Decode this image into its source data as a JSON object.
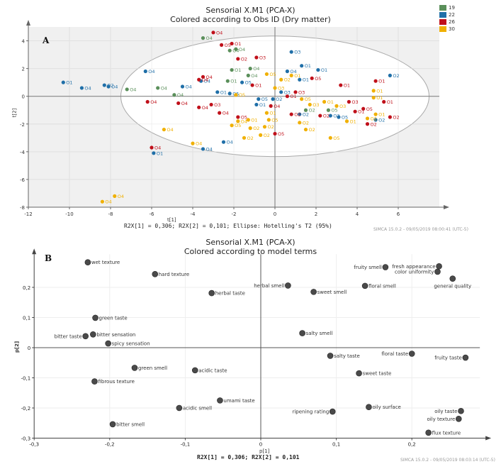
{
  "chart_data": [
    {
      "type": "scatter",
      "panel": "A",
      "title": "Sensorial X.M1 (PCA-X)",
      "subtitle": "Colored according to Obs ID (Dry matter)",
      "xlabel": "t[1]",
      "ylabel": "t[2]",
      "xlim": [
        -12,
        8
      ],
      "ylim": [
        -8,
        5
      ],
      "xticks": [
        "-12",
        "-10",
        "-8",
        "-6",
        "-4",
        "-2",
        "0",
        "2",
        "4",
        "6"
      ],
      "xtick_values": [
        -12,
        -10,
        -8,
        -6,
        -4,
        -2,
        0,
        2,
        4,
        6
      ],
      "yticks": [
        "4",
        "2",
        "0",
        "-2",
        "-4",
        "-6",
        "-8"
      ],
      "ytick_values": [
        4,
        2,
        0,
        -2,
        -4,
        -6,
        -8
      ],
      "grid": true,
      "ellipse": {
        "label": "Hotelling's T2 (95%)",
        "rx": 7.5,
        "ry": 4.35
      },
      "footnote": "R2X[1] = 0,306; R2X[2] = 0,101; Ellipse: Hotelling's T2 (95%)",
      "software": "SIMCA 15.0.2 - 09/05/2019 08:00:41 (UTC-5)",
      "legend_position": "top-right",
      "legend": [
        {
          "label": "19",
          "color": "#5a8f5a"
        },
        {
          "label": "22",
          "color": "#1f6fa8"
        },
        {
          "label": "26",
          "color": "#c0101a"
        },
        {
          "label": "30",
          "color": "#f0b000"
        }
      ],
      "series": [
        {
          "name": "19",
          "color": "#5a8f5a",
          "points": [
            {
              "x": -3.5,
              "y": 4.2,
              "label": "O4"
            },
            {
              "x": -1.9,
              "y": 3.4,
              "label": "O4"
            },
            {
              "x": -2.2,
              "y": 3.3,
              "label": "O4"
            },
            {
              "x": -7.2,
              "y": 0.5,
              "label": "O4"
            },
            {
              "x": -5.7,
              "y": 0.6,
              "label": "O4"
            },
            {
              "x": -4.9,
              "y": 0.1,
              "label": "O4"
            },
            {
              "x": -2.1,
              "y": 1.9,
              "label": "O1"
            },
            {
              "x": -1.2,
              "y": 2.0,
              "label": "O4"
            },
            {
              "x": -2.3,
              "y": 1.1,
              "label": "O1"
            },
            {
              "x": -1.3,
              "y": 1.5,
              "label": "O4"
            },
            {
              "x": 1.5,
              "y": -1.0,
              "label": "O2"
            },
            {
              "x": 2.6,
              "y": -1.0,
              "label": "O5"
            }
          ]
        },
        {
          "name": "22",
          "color": "#1f6fa8",
          "points": [
            {
              "x": -10.3,
              "y": 1.0,
              "label": "O1"
            },
            {
              "x": -9.4,
              "y": 0.6,
              "label": "O4"
            },
            {
              "x": -8.3,
              "y": 0.8,
              "label": "O2"
            },
            {
              "x": -8.1,
              "y": 0.7,
              "label": "O4"
            },
            {
              "x": -6.3,
              "y": 1.8,
              "label": "O4"
            },
            {
              "x": -4.5,
              "y": 0.7,
              "label": "O4"
            },
            {
              "x": -5.9,
              "y": -4.1,
              "label": "O1"
            },
            {
              "x": -3.5,
              "y": -3.8,
              "label": "O4"
            },
            {
              "x": -2.5,
              "y": -3.3,
              "label": "O4"
            },
            {
              "x": -3.6,
              "y": 1.1,
              "label": "O4"
            },
            {
              "x": 0.8,
              "y": 3.2,
              "label": "O3"
            },
            {
              "x": 2.1,
              "y": 1.9,
              "label": "O1"
            },
            {
              "x": 1.3,
              "y": 2.2,
              "label": "O1"
            },
            {
              "x": 5.6,
              "y": 1.5,
              "label": "O2"
            },
            {
              "x": -2.8,
              "y": 0.3,
              "label": "O1"
            },
            {
              "x": -2.2,
              "y": 0.2,
              "label": "O5"
            },
            {
              "x": -0.8,
              "y": -0.2,
              "label": "O5"
            },
            {
              "x": -0.9,
              "y": -0.6,
              "label": "O1"
            },
            {
              "x": 0.3,
              "y": 0.3,
              "label": "O3"
            },
            {
              "x": -0.1,
              "y": -0.2,
              "label": "O2"
            },
            {
              "x": 1.2,
              "y": -1.3,
              "label": "O2"
            },
            {
              "x": 3.1,
              "y": -1.5,
              "label": "O5"
            },
            {
              "x": 4.9,
              "y": -1.7,
              "label": "O2"
            },
            {
              "x": 2.7,
              "y": -1.4,
              "label": "O2"
            },
            {
              "x": -1.6,
              "y": 1.0,
              "label": "O5"
            },
            {
              "x": 0.6,
              "y": 1.8,
              "label": "O4"
            },
            {
              "x": 1.2,
              "y": 1.2,
              "label": "O1"
            }
          ]
        },
        {
          "name": "26",
          "color": "#c0101a",
          "points": [
            {
              "x": -3.0,
              "y": 4.6,
              "label": "O4"
            },
            {
              "x": -2.1,
              "y": 3.8,
              "label": "O1"
            },
            {
              "x": -2.6,
              "y": 3.7,
              "label": "O5"
            },
            {
              "x": -1.8,
              "y": 2.7,
              "label": "O2"
            },
            {
              "x": -0.9,
              "y": 2.8,
              "label": "O3"
            },
            {
              "x": -3.5,
              "y": 1.4,
              "label": "O4"
            },
            {
              "x": -3.7,
              "y": 1.2,
              "label": "O4"
            },
            {
              "x": -6.2,
              "y": -0.4,
              "label": "O4"
            },
            {
              "x": -4.7,
              "y": -0.5,
              "label": "O4"
            },
            {
              "x": -3.7,
              "y": -0.8,
              "label": "O4"
            },
            {
              "x": -3.1,
              "y": -0.6,
              "label": "O3"
            },
            {
              "x": -2.7,
              "y": -1.2,
              "label": "O4"
            },
            {
              "x": -6.0,
              "y": -3.7,
              "label": "O4"
            },
            {
              "x": -1.8,
              "y": -1.5,
              "label": "O5"
            },
            {
              "x": 0.0,
              "y": -2.7,
              "label": "O5"
            },
            {
              "x": 3.2,
              "y": 0.8,
              "label": "O1"
            },
            {
              "x": 4.9,
              "y": 1.1,
              "label": "O1"
            },
            {
              "x": 5.3,
              "y": -0.4,
              "label": "O1"
            },
            {
              "x": 5.6,
              "y": -1.5,
              "label": "O2"
            },
            {
              "x": 4.5,
              "y": -2.0,
              "label": "O2"
            },
            {
              "x": 3.6,
              "y": -0.4,
              "label": "O3"
            },
            {
              "x": 2.2,
              "y": -1.4,
              "label": "O2"
            },
            {
              "x": 0.8,
              "y": -1.3,
              "label": "O2"
            },
            {
              "x": -0.2,
              "y": -0.7,
              "label": "O4"
            },
            {
              "x": 1.8,
              "y": 1.3,
              "label": "O5"
            },
            {
              "x": -1.1,
              "y": 0.8,
              "label": "O1"
            },
            {
              "x": 0.6,
              "y": 0.0,
              "label": "O1"
            },
            {
              "x": 4.3,
              "y": -0.9,
              "label": "O5"
            },
            {
              "x": 3.9,
              "y": -1.1,
              "label": "O1"
            },
            {
              "x": 1.0,
              "y": 0.3,
              "label": "O3"
            }
          ]
        },
        {
          "name": "30",
          "color": "#f0b000",
          "points": [
            {
              "x": -5.4,
              "y": -2.4,
              "label": "O4"
            },
            {
              "x": -4.0,
              "y": -3.4,
              "label": "O4"
            },
            {
              "x": -7.8,
              "y": -7.2,
              "label": "O4"
            },
            {
              "x": -8.4,
              "y": -7.6,
              "label": "O4"
            },
            {
              "x": -2.1,
              "y": -2.1,
              "label": "O5"
            },
            {
              "x": -1.8,
              "y": -1.8,
              "label": "O4"
            },
            {
              "x": -1.3,
              "y": -1.7,
              "label": "O1"
            },
            {
              "x": -1.2,
              "y": -2.3,
              "label": "O2"
            },
            {
              "x": -0.5,
              "y": -2.2,
              "label": "O2"
            },
            {
              "x": -0.4,
              "y": -1.2,
              "label": "O1"
            },
            {
              "x": -0.3,
              "y": -1.7,
              "label": "O5"
            },
            {
              "x": -0.7,
              "y": -2.8,
              "label": "O2"
            },
            {
              "x": -1.5,
              "y": -3.0,
              "label": "O2"
            },
            {
              "x": 1.2,
              "y": -1.9,
              "label": "O2"
            },
            {
              "x": 1.5,
              "y": -2.4,
              "label": "O2"
            },
            {
              "x": 2.7,
              "y": -3.0,
              "label": "O5"
            },
            {
              "x": 3.5,
              "y": -1.8,
              "label": "O1"
            },
            {
              "x": 4.8,
              "y": 0.4,
              "label": "O1"
            },
            {
              "x": 4.8,
              "y": -0.1,
              "label": "O1"
            },
            {
              "x": 4.9,
              "y": -1.3,
              "label": "O1"
            },
            {
              "x": 4.5,
              "y": -1.6,
              "label": "O2"
            },
            {
              "x": -1.9,
              "y": 0.1,
              "label": "O5"
            },
            {
              "x": 0.0,
              "y": 0.6,
              "label": "O3"
            },
            {
              "x": 0.8,
              "y": 1.5,
              "label": "O1"
            },
            {
              "x": 1.7,
              "y": -0.6,
              "label": "O3"
            },
            {
              "x": 2.4,
              "y": -0.4,
              "label": "O1"
            },
            {
              "x": 3.0,
              "y": -0.7,
              "label": "O3"
            },
            {
              "x": -0.4,
              "y": 1.6,
              "label": "O5"
            },
            {
              "x": 0.3,
              "y": 1.2,
              "label": "O2"
            },
            {
              "x": 1.3,
              "y": -0.2,
              "label": "O5"
            }
          ]
        }
      ]
    },
    {
      "type": "scatter",
      "panel": "B",
      "title": "Sensorial X.M1 (PCA-X)",
      "subtitle": "Colored according to model terms",
      "xlabel": "p[1]",
      "ylabel": "p[2]",
      "xlim": [
        -0.3,
        0.3
      ],
      "ylim": [
        -0.3,
        0.3
      ],
      "xticks": [
        "-0,3",
        "-0,2",
        "-0,1",
        "0",
        "0,1",
        "0,2"
      ],
      "xtick_values": [
        -0.3,
        -0.2,
        -0.1,
        0,
        0.1,
        0.2
      ],
      "yticks": [
        "0,2",
        "0,1",
        "0",
        "-0,1",
        "-0,2",
        "-0,3"
      ],
      "ytick_values": [
        0.2,
        0.1,
        0,
        -0.1,
        -0.2,
        -0.3
      ],
      "grid": true,
      "footnote": "R2X[1] = 0,306; R2X[2] = 0,101",
      "software": "SIMCA 15.0.2 - 09/05/2019 08:03:14 (UTC-5)",
      "marker_color": "#4a4a4a",
      "points": [
        {
          "x": -0.229,
          "y": 0.283,
          "label": "wet texture",
          "side": "right"
        },
        {
          "x": -0.14,
          "y": 0.244,
          "label": "hard texture",
          "side": "right"
        },
        {
          "x": 0.036,
          "y": 0.206,
          "label": "herbal smell",
          "side": "left"
        },
        {
          "x": -0.065,
          "y": 0.181,
          "label": "herbal taste",
          "side": "right"
        },
        {
          "x": 0.07,
          "y": 0.185,
          "label": "sweet smell",
          "side": "right"
        },
        {
          "x": 0.138,
          "y": 0.205,
          "label": "floral smell",
          "side": "right"
        },
        {
          "x": 0.165,
          "y": 0.267,
          "label": "fruity   smell",
          "side": "left"
        },
        {
          "x": 0.236,
          "y": 0.27,
          "label": "fresh appearance",
          "side": "left"
        },
        {
          "x": 0.234,
          "y": 0.252,
          "label": "color uniformity",
          "side": "left"
        },
        {
          "x": 0.254,
          "y": 0.229,
          "label": "general quality",
          "side": "below"
        },
        {
          "x": -0.219,
          "y": 0.099,
          "label": "green taste",
          "side": "right"
        },
        {
          "x": -0.232,
          "y": 0.038,
          "label": "bitter taste",
          "side": "left"
        },
        {
          "x": -0.222,
          "y": 0.044,
          "label": "bitter sensation",
          "side": "right"
        },
        {
          "x": -0.202,
          "y": 0.014,
          "label": "spicy sensation",
          "side": "right"
        },
        {
          "x": 0.055,
          "y": 0.048,
          "label": "salty smell",
          "side": "right"
        },
        {
          "x": 0.092,
          "y": -0.027,
          "label": "salty taste",
          "side": "right"
        },
        {
          "x": 0.2,
          "y": -0.02,
          "label": "floral taste",
          "side": "left"
        },
        {
          "x": 0.271,
          "y": -0.033,
          "label": "fruity taste",
          "side": "left"
        },
        {
          "x": -0.167,
          "y": -0.067,
          "label": "green smell",
          "side": "right"
        },
        {
          "x": -0.087,
          "y": -0.075,
          "label": "acidic taste",
          "side": "right"
        },
        {
          "x": -0.22,
          "y": -0.112,
          "label": "fibrous texture",
          "side": "right"
        },
        {
          "x": 0.13,
          "y": -0.085,
          "label": "sweet taste",
          "side": "right"
        },
        {
          "x": -0.054,
          "y": -0.175,
          "label": "umami taste",
          "side": "right"
        },
        {
          "x": -0.108,
          "y": -0.2,
          "label": "acidic smell",
          "side": "right"
        },
        {
          "x": 0.095,
          "y": -0.212,
          "label": "ripening rating",
          "side": "left"
        },
        {
          "x": 0.143,
          "y": -0.197,
          "label": "oily surface",
          "side": "right"
        },
        {
          "x": 0.265,
          "y": -0.21,
          "label": "oily taste",
          "side": "left"
        },
        {
          "x": 0.262,
          "y": -0.236,
          "label": "oily texture",
          "side": "left"
        },
        {
          "x": -0.196,
          "y": -0.254,
          "label": "bitter smell",
          "side": "right"
        },
        {
          "x": 0.222,
          "y": -0.282,
          "label": "flux texture",
          "side": "right"
        }
      ]
    }
  ],
  "panel_a_letter": "A",
  "panel_b_letter": "B"
}
